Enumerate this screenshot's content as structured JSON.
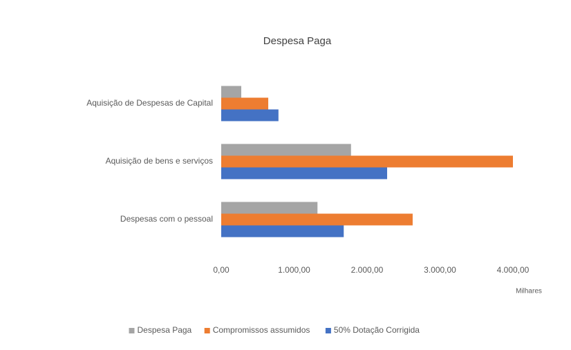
{
  "chart_data": {
    "type": "bar",
    "orientation": "horizontal",
    "title": "Despesa Paga",
    "categories": [
      "Aquisição de Despesas de Capital",
      "Aquisição de bens e serviços",
      "Despesas com o pessoal"
    ],
    "series": [
      {
        "name": "Despesa Paga",
        "color": "#a5a5a5",
        "values": [
          275,
          1780,
          1320
        ]
      },
      {
        "name": "Compromissos assumidos",
        "color": "#ed7d31",
        "values": [
          645,
          4000,
          2625
        ]
      },
      {
        "name": "50% Dotação Corrigida",
        "color": "#4472c4",
        "values": [
          785,
          2275,
          1680
        ]
      }
    ],
    "xlim": [
      0,
      4000
    ],
    "xticks": [
      {
        "value": 0,
        "label": "0,00"
      },
      {
        "value": 1000,
        "label": "1.000,00"
      },
      {
        "value": 2000,
        "label": "2.000,00"
      },
      {
        "value": 3000,
        "label": "3.000,00"
      },
      {
        "value": 4000,
        "label": "4.000,00"
      }
    ],
    "xlabel": "Milhares",
    "legend": "bottom",
    "grid": false
  }
}
